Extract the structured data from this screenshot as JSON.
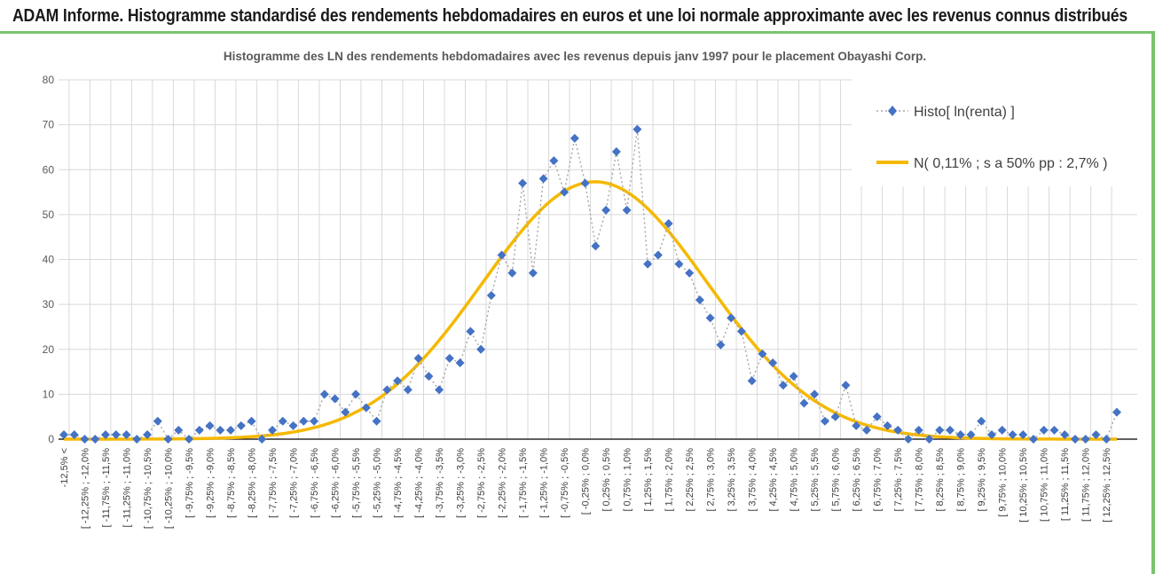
{
  "header": {
    "title": "ADAM Informe. Histogramme standardisé des rendements hebdomadaires en euros et une loi normale approximante avec les revenus connus distribués"
  },
  "colors": {
    "accent": "#7cc36e",
    "histo": "#4472c4",
    "normal": "#f5b800",
    "grid": "#d9d9d9"
  },
  "chart_data": {
    "type": "line",
    "title": "Histogramme des LN des rendements hebdomadaires avec les revenus depuis janv 1997 pour le placement Obayashi Corp.",
    "xlabel": "",
    "ylabel": "",
    "ylim": [
      0,
      80
    ],
    "yticks": [
      0,
      10,
      20,
      30,
      40,
      50,
      60,
      70,
      80
    ],
    "grid": true,
    "legend_position": "top-right",
    "categories": [
      "-12,5% <",
      "[ -12,25% ; -12,0%",
      "[ -11,75% ; -11,5%",
      "[ -11,25% ; -11,0%",
      "[ -10,75% ; -10,5%",
      "[ -10,25% ; -10,0%",
      "[ -9,75% ; -9,5%",
      "[ -9,25% ; -9,0%",
      "[ -8,75% ; -8,5%",
      "[ -8,25% ; -8,0%",
      "[ -7,75% ; -7,5%",
      "[ -7,25% ; -7,0%",
      "[ -6,75% ; -6,5%",
      "[ -6,25% ; -6,0%",
      "[ -5,75% ; -5,5%",
      "[ -5,25% ; -5,0%",
      "[ -4,75% ; -4,5%",
      "[ -4,25% ; -4,0%",
      "[ -3,75% ; -3,5%",
      "[ -3,25% ; -3,0%",
      "[ -2,75% ; -2,5%",
      "[ -2,25% ; -2,0%",
      "[ -1,75% ; -1,5%",
      "[ -1,25% ; -1,0%",
      "[ -0,75% ; -0,5%",
      "[ -0,25% ; 0,0%",
      "[ 0,25% ; 0,5%",
      "[ 0,75% ; 1,0%",
      "[ 1,25% ; 1,5%",
      "[ 1,75% ; 2,0%",
      "[ 2,25% ; 2,5%",
      "[ 2,75% ; 3,0%",
      "[ 3,25% ; 3,5%",
      "[ 3,75% ; 4,0%",
      "[ 4,25% ; 4,5%",
      "[ 4,75% ; 5,0%",
      "[ 5,25% ; 5,5%",
      "[ 5,75% ; 6,0%",
      "[ 6,25% ; 6,5%",
      "[ 6,75% ; 7,0%",
      "[ 7,25% ; 7,5%",
      "[ 7,75% ; 8,0%",
      "[ 8,25% ; 8,5%",
      "[ 8,75% ; 9,0%",
      "[ 9,25% ; 9,5%",
      "[ 9,75% ; 10,0%",
      "[ 10,25% ; 10,5%",
      "[ 10,75% ; 11,0%",
      "[ 11,25% ; 11,5%",
      "[ 11,75% ; 12,0%",
      "[ 12,25% ; 12,5%"
    ],
    "series": [
      {
        "name": "Histo[ ln(renta) ]",
        "kind": "scatter-dotted",
        "values": [
          1,
          1,
          0,
          0,
          1,
          1,
          1,
          0,
          1,
          4,
          0,
          2,
          0,
          2,
          3,
          2,
          2,
          3,
          4,
          0,
          2,
          4,
          3,
          4,
          4,
          10,
          9,
          6,
          10,
          7,
          4,
          11,
          13,
          11,
          18,
          14,
          11,
          18,
          17,
          24,
          20,
          32,
          41,
          37,
          57,
          37,
          58,
          62,
          55,
          67,
          57,
          43,
          51,
          64,
          51,
          69,
          39,
          41,
          48,
          39,
          37,
          31,
          27,
          21,
          27,
          24,
          13,
          19,
          17,
          12,
          14,
          8,
          10,
          4,
          5,
          12,
          3,
          2,
          5,
          3,
          2,
          0,
          2,
          0,
          2,
          2,
          1,
          1,
          4,
          1,
          2,
          1,
          1,
          0,
          2,
          2,
          1,
          0,
          0,
          1,
          0,
          6
        ]
      },
      {
        "name": "N( 0,11% ; s a 50% pp : 2,7% )",
        "kind": "line",
        "mean_pct": 0.11,
        "sd_pct": 2.7,
        "peak": 57.3
      }
    ]
  }
}
